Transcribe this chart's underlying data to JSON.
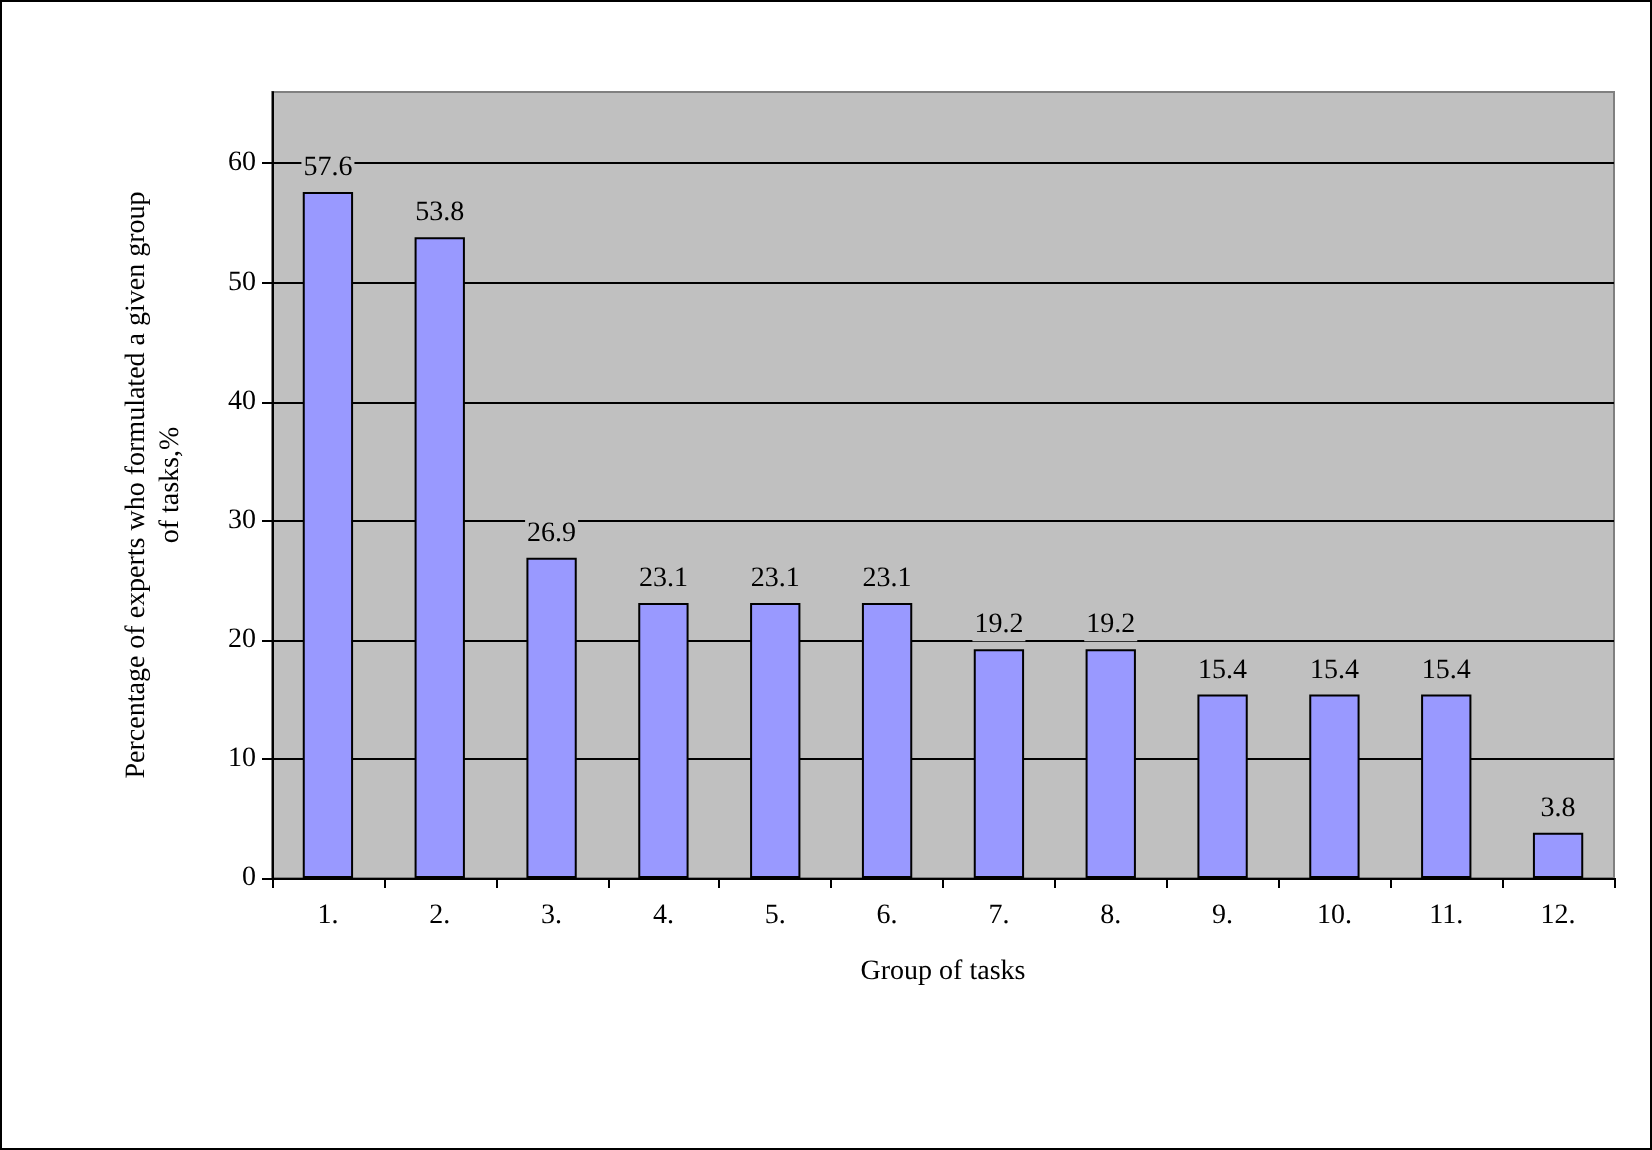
{
  "chart_data": {
    "type": "bar",
    "xlabel": "Group of tasks",
    "ylabel": "Percentage of experts who formulated a given group\nof tasks,%",
    "categories": [
      "1.",
      "2.",
      "3.",
      "4.",
      "5.",
      "6.",
      "7.",
      "8.",
      "9.",
      "10.",
      "11.",
      "12."
    ],
    "values": [
      57.6,
      53.8,
      26.9,
      23.1,
      23.1,
      23.1,
      19.2,
      19.2,
      15.4,
      15.4,
      15.4,
      3.8
    ],
    "color": "#9999ff",
    "ylim": [
      0,
      66
    ],
    "yticks": [
      0,
      10,
      20,
      30,
      40,
      50,
      60
    ],
    "grid": "y",
    "data_labels": true
  }
}
